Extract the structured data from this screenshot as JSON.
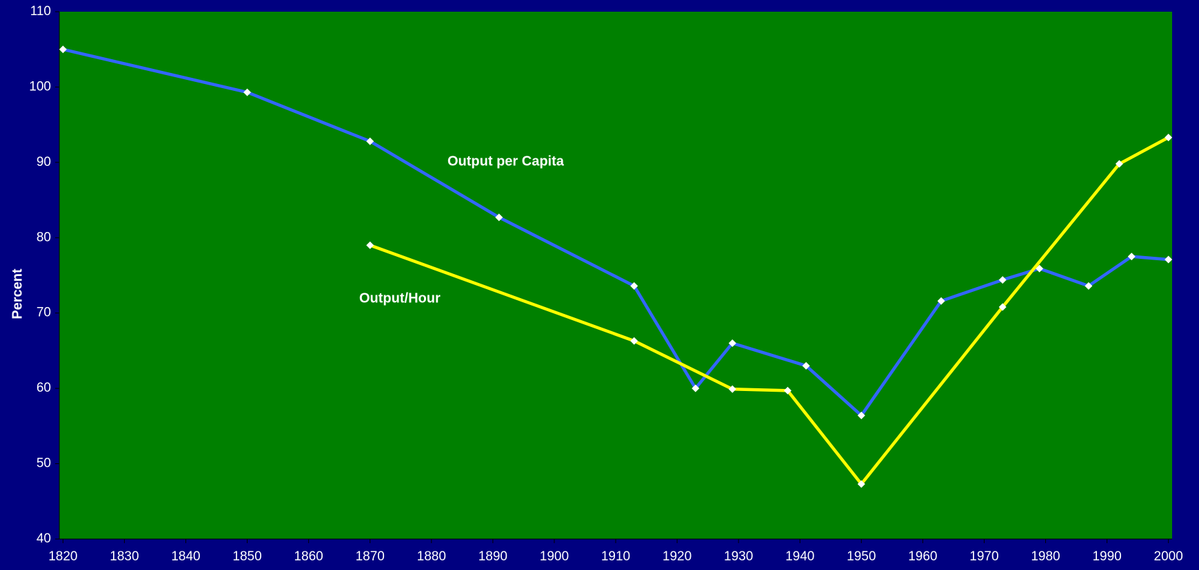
{
  "chart_data": {
    "type": "line",
    "y_label": "Percent",
    "annotations": [
      "Output per Capita",
      "Output/Hour"
    ],
    "xlim": [
      1819.4,
      2000.6
    ],
    "xticks": [
      1820,
      1830,
      1840,
      1850,
      1860,
      1870,
      1880,
      1890,
      1900,
      1910,
      1920,
      1930,
      1940,
      1950,
      1960,
      1970,
      1980,
      1990,
      2000
    ],
    "ylim": [
      40,
      110
    ],
    "yticks": [
      40,
      50,
      60,
      70,
      80,
      90,
      100,
      110
    ],
    "grid": false,
    "background": "#008000",
    "marker_color": "#ffffff",
    "series": [
      {
        "name": "Output per Capita",
        "color": "#3366ff",
        "x": [
          1820,
          1850,
          1870,
          1891,
          1913,
          1923,
          1929,
          1941,
          1950,
          1963,
          1973,
          1979,
          1987,
          1994,
          2000
        ],
        "values": [
          105,
          99.3,
          92.8,
          82.7,
          73.6,
          60,
          66,
          63,
          56.4,
          71.6,
          74.4,
          75.9,
          73.6,
          77.5,
          77.1
        ]
      },
      {
        "name": "Output/Hour",
        "color": "#ffff00",
        "x": [
          1870,
          1913,
          1929,
          1938,
          1950,
          1973,
          1992,
          2000
        ],
        "values": [
          79,
          66.3,
          59.9,
          59.7,
          47.3,
          70.8,
          89.8,
          93.3
        ]
      }
    ]
  }
}
